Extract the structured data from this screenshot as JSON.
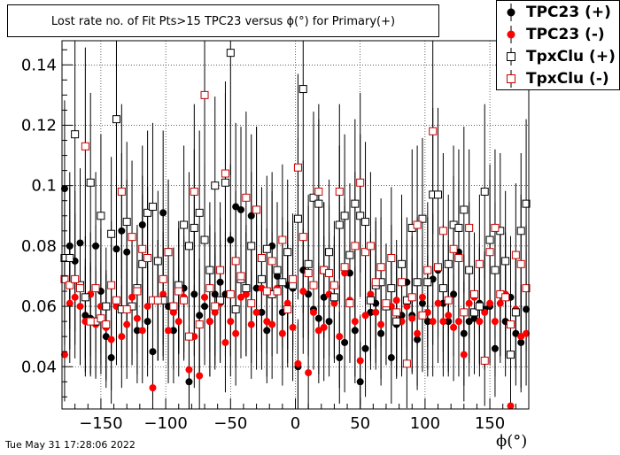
{
  "title": "Lost rate no. of Fit Pts>15 TPC23 versus ϕ(°) for Primary(+)",
  "timestamp": "Tue May 31 17:28:06 2022",
  "xtitle": "ϕ(°)",
  "chart_data": {
    "type": "scatter",
    "xlim": [
      -180,
      180
    ],
    "ylim": [
      0.026,
      0.148
    ],
    "x_ticks": [
      -150,
      -100,
      -50,
      0,
      50,
      100,
      150
    ],
    "x_tick_labels": [
      "−150",
      "−100",
      "−50",
      "0",
      "50",
      "100",
      "150"
    ],
    "y_ticks": [
      0.04,
      0.06,
      0.08,
      0.1,
      0.12,
      0.14
    ],
    "y_tick_labels": [
      "0.04",
      "0.06",
      "0.08",
      "0.1",
      "0.12",
      "0.14"
    ],
    "grid": true,
    "legend_position": "top-right",
    "x": [
      -178,
      -174,
      -170,
      -166,
      -162,
      -158,
      -154,
      -150,
      -146,
      -142,
      -138,
      -134,
      -130,
      -126,
      -122,
      -118,
      -114,
      -110,
      -106,
      -102,
      -98,
      -94,
      -90,
      -86,
      -82,
      -78,
      -74,
      -70,
      -66,
      -62,
      -58,
      -54,
      -50,
      -46,
      -42,
      -38,
      -34,
      -30,
      -26,
      -22,
      -18,
      -14,
      -10,
      -6,
      -2,
      2,
      6,
      10,
      14,
      18,
      22,
      26,
      30,
      34,
      38,
      42,
      46,
      50,
      54,
      58,
      62,
      66,
      70,
      74,
      78,
      82,
      86,
      90,
      94,
      98,
      102,
      106,
      110,
      114,
      118,
      122,
      126,
      130,
      134,
      138,
      142,
      146,
      150,
      154,
      158,
      162,
      166,
      170,
      174,
      178
    ],
    "series": [
      {
        "name": "TPC23 (+)",
        "color": "#000000",
        "marker": "filled-circle",
        "values": [
          0.099,
          0.08,
          0.075,
          0.081,
          0.057,
          0.056,
          0.08,
          0.065,
          0.05,
          0.043,
          0.079,
          0.085,
          0.078,
          0.06,
          0.052,
          0.087,
          0.055,
          0.045,
          0.062,
          0.091,
          0.06,
          0.052,
          0.065,
          0.066,
          0.035,
          0.064,
          0.057,
          0.06,
          0.055,
          0.064,
          0.068,
          0.064,
          0.082,
          0.093,
          0.092,
          0.064,
          0.09,
          0.066,
          0.058,
          0.052,
          0.08,
          0.07,
          0.058,
          0.067,
          0.066,
          0.04,
          0.072,
          0.064,
          0.059,
          0.056,
          0.063,
          0.055,
          0.063,
          0.043,
          0.048,
          0.071,
          0.052,
          0.035,
          0.046,
          0.058,
          0.061,
          0.051,
          0.06,
          0.043,
          0.054,
          0.057,
          0.068,
          0.057,
          0.049,
          0.061,
          0.055,
          0.069,
          0.072,
          0.061,
          0.055,
          0.064,
          0.078,
          0.051,
          0.055,
          0.056,
          0.061,
          0.059,
          0.06,
          0.046,
          0.064,
          0.055,
          0.063,
          0.051,
          0.048,
          0.059
        ]
      },
      {
        "name": "TPC23 (-)",
        "color": "#ff0000",
        "marker": "filled-circle",
        "values": [
          0.044,
          0.061,
          0.063,
          0.06,
          0.055,
          0.064,
          0.054,
          0.06,
          0.053,
          0.049,
          0.06,
          0.05,
          0.054,
          0.063,
          0.056,
          0.052,
          0.06,
          0.033,
          0.062,
          0.064,
          0.052,
          0.058,
          0.055,
          0.063,
          0.039,
          0.05,
          0.037,
          0.063,
          0.055,
          0.058,
          0.061,
          0.048,
          0.055,
          0.051,
          0.063,
          0.064,
          0.054,
          0.058,
          0.066,
          0.055,
          0.054,
          0.066,
          0.051,
          0.061,
          0.053,
          0.041,
          0.065,
          0.038,
          0.058,
          0.052,
          0.053,
          0.064,
          0.061,
          0.05,
          0.071,
          0.062,
          0.055,
          0.042,
          0.057,
          0.064,
          0.058,
          0.054,
          0.061,
          0.06,
          0.062,
          0.055,
          0.06,
          0.056,
          0.051,
          0.063,
          0.058,
          0.055,
          0.061,
          0.055,
          0.057,
          0.053,
          0.055,
          0.044,
          0.061,
          0.063,
          0.055,
          0.058,
          0.061,
          0.055,
          0.061,
          0.064,
          0.027,
          0.059,
          0.05,
          0.051
        ]
      },
      {
        "name": "TpxClu (+)",
        "color": "#000000",
        "marker": "open-square",
        "values": [
          0.076,
          0.076,
          0.117,
          0.067,
          0.063,
          0.101,
          0.055,
          0.09,
          0.06,
          0.084,
          0.122,
          0.059,
          0.088,
          0.06,
          0.066,
          0.074,
          0.091,
          0.093,
          0.075,
          0.062,
          0.078,
          0.06,
          0.067,
          0.087,
          0.08,
          0.086,
          0.091,
          0.082,
          0.072,
          0.1,
          0.062,
          0.101,
          0.144,
          0.059,
          0.069,
          0.066,
          0.08,
          0.092,
          0.069,
          0.079,
          0.064,
          0.072,
          0.068,
          0.078,
          0.067,
          0.089,
          0.132,
          0.074,
          0.096,
          0.094,
          0.072,
          0.078,
          0.063,
          0.087,
          0.09,
          0.077,
          0.094,
          0.09,
          0.088,
          0.062,
          0.067,
          0.068,
          0.06,
          0.066,
          0.055,
          0.074,
          0.062,
          0.086,
          0.068,
          0.089,
          0.068,
          0.097,
          0.097,
          0.066,
          0.074,
          0.087,
          0.086,
          0.092,
          0.072,
          0.058,
          0.06,
          0.098,
          0.082,
          0.072,
          0.085,
          0.075,
          0.044,
          0.058,
          0.085,
          0.094
        ]
      },
      {
        "name": "TpxClu (-)",
        "color": "#cc0000",
        "marker": "open-square",
        "values": [
          0.069,
          0.067,
          0.069,
          0.066,
          0.113,
          0.055,
          0.066,
          0.056,
          0.054,
          0.067,
          0.062,
          0.098,
          0.059,
          0.083,
          0.065,
          0.079,
          0.076,
          0.062,
          0.062,
          0.069,
          0.078,
          0.06,
          0.065,
          0.062,
          0.05,
          0.098,
          0.054,
          0.13,
          0.066,
          0.06,
          0.072,
          0.104,
          0.064,
          0.075,
          0.07,
          0.096,
          0.061,
          0.092,
          0.076,
          0.065,
          0.075,
          0.065,
          0.082,
          0.059,
          0.069,
          0.106,
          0.083,
          0.071,
          0.067,
          0.098,
          0.072,
          0.071,
          0.067,
          0.098,
          0.073,
          0.061,
          0.08,
          0.101,
          0.078,
          0.08,
          0.068,
          0.073,
          0.061,
          0.076,
          0.058,
          0.068,
          0.041,
          0.063,
          0.087,
          0.057,
          0.072,
          0.118,
          0.073,
          0.085,
          0.062,
          0.079,
          0.076,
          0.058,
          0.086,
          0.064,
          0.074,
          0.042,
          0.078,
          0.086,
          0.064,
          0.063,
          0.054,
          0.077,
          0.074,
          0.066
        ]
      }
    ]
  }
}
